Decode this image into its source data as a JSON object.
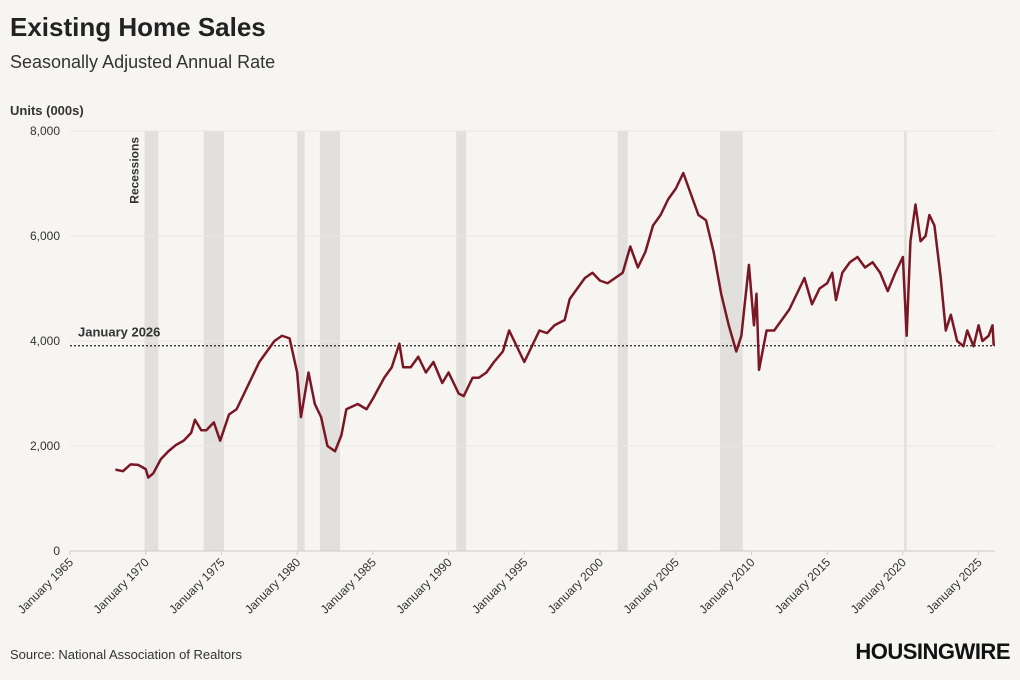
{
  "chart_data": {
    "type": "line",
    "title": "Existing Home Sales",
    "subtitle": "Seasonally Adjusted Annual Rate",
    "y_label": "Units (000s)",
    "source": "Source: National Association of Realtors",
    "brand": "HOUSINGWIRE",
    "recession_label": "Recessions",
    "recessions": [
      [
        "1969-12",
        "1970-11"
      ],
      [
        "1973-11",
        "1975-03"
      ],
      [
        "1980-01",
        "1980-07"
      ],
      [
        "1981-07",
        "1982-11"
      ],
      [
        "1990-07",
        "1991-03"
      ],
      [
        "2001-03",
        "2001-11"
      ],
      [
        "2007-12",
        "2009-06"
      ],
      [
        "2020-02",
        "2020-04"
      ]
    ],
    "reference": {
      "label": "January 2026",
      "value": 3910
    },
    "xlim": [
      "1965-01",
      "2026-02"
    ],
    "xticks": [
      {
        "value": "1965-01",
        "label": "January 1965"
      },
      {
        "value": "1970-01",
        "label": "January 1970"
      },
      {
        "value": "1975-01",
        "label": "January 1975"
      },
      {
        "value": "1980-01",
        "label": "January 1980"
      },
      {
        "value": "1985-01",
        "label": "January 1985"
      },
      {
        "value": "1990-01",
        "label": "January 1990"
      },
      {
        "value": "1995-01",
        "label": "January 1995"
      },
      {
        "value": "2000-01",
        "label": "January 2000"
      },
      {
        "value": "2005-01",
        "label": "January 2005"
      },
      {
        "value": "2010-01",
        "label": "January 2010"
      },
      {
        "value": "2015-01",
        "label": "January 2015"
      },
      {
        "value": "2020-01",
        "label": "January 2020"
      },
      {
        "value": "2025-01",
        "label": "January 2025"
      }
    ],
    "ylim": [
      0,
      8000
    ],
    "yticks": [
      0,
      {
        "value": 2000,
        "label": "2,000"
      },
      {
        "value": 4000,
        "label": "4,000"
      },
      {
        "value": 6000,
        "label": "6,000"
      },
      {
        "value": 8000,
        "label": "8,000"
      }
    ],
    "grid": true,
    "x": [
      "1968-01",
      "1968-07",
      "1969-01",
      "1969-07",
      "1970-01",
      "1970-03",
      "1970-07",
      "1971-01",
      "1971-07",
      "1972-01",
      "1972-07",
      "1973-01",
      "1973-04",
      "1973-09",
      "1974-01",
      "1974-07",
      "1974-12",
      "1975-07",
      "1976-01",
      "1976-07",
      "1977-01",
      "1977-07",
      "1978-01",
      "1978-07",
      "1979-01",
      "1979-07",
      "1980-01",
      "1980-04",
      "1980-10",
      "1981-03",
      "1981-08",
      "1982-01",
      "1982-07",
      "1982-12",
      "1983-04",
      "1984-01",
      "1984-08",
      "1985-01",
      "1985-10",
      "1986-04",
      "1986-10",
      "1987-01",
      "1987-07",
      "1988-01",
      "1988-07",
      "1989-01",
      "1989-08",
      "1990-01",
      "1990-09",
      "1991-01",
      "1991-08",
      "1992-01",
      "1992-07",
      "1993-01",
      "1993-08",
      "1994-01",
      "1994-07",
      "1995-01",
      "1995-07",
      "1996-01",
      "1996-07",
      "1997-01",
      "1997-09",
      "1998-01",
      "1998-07",
      "1999-01",
      "1999-07",
      "2000-01",
      "2000-07",
      "2001-01",
      "2001-07",
      "2002-01",
      "2002-07",
      "2003-01",
      "2003-07",
      "2004-01",
      "2004-07",
      "2005-01",
      "2005-07",
      "2006-01",
      "2006-07",
      "2007-01",
      "2007-07",
      "2008-01",
      "2008-07",
      "2009-01",
      "2009-05",
      "2009-11",
      "2010-03",
      "2010-05",
      "2010-07",
      "2011-01",
      "2011-07",
      "2012-01",
      "2012-07",
      "2013-01",
      "2013-07",
      "2014-01",
      "2014-07",
      "2015-01",
      "2015-05",
      "2015-08",
      "2016-01",
      "2016-07",
      "2017-01",
      "2017-07",
      "2018-01",
      "2018-07",
      "2019-01",
      "2019-07",
      "2020-01",
      "2020-04",
      "2020-07",
      "2020-11",
      "2021-03",
      "2021-07",
      "2021-10",
      "2022-02",
      "2022-07",
      "2022-11",
      "2023-03",
      "2023-08",
      "2024-01",
      "2024-04",
      "2024-09",
      "2025-01",
      "2025-04",
      "2025-09",
      "2025-12",
      "2026-01"
    ],
    "series": [
      {
        "name": "Existing Home Sales",
        "color": "#7a1725",
        "values": [
          1550,
          1520,
          1650,
          1640,
          1560,
          1400,
          1480,
          1750,
          1900,
          2020,
          2100,
          2250,
          2500,
          2300,
          2300,
          2450,
          2100,
          2600,
          2700,
          3000,
          3300,
          3600,
          3800,
          4000,
          4100,
          4050,
          3400,
          2550,
          3400,
          2800,
          2550,
          2000,
          1900,
          2200,
          2700,
          2800,
          2700,
          2900,
          3300,
          3500,
          3950,
          3500,
          3500,
          3700,
          3400,
          3600,
          3200,
          3400,
          3000,
          2950,
          3300,
          3300,
          3400,
          3600,
          3800,
          4200,
          3900,
          3600,
          3900,
          4200,
          4150,
          4300,
          4400,
          4800,
          5000,
          5200,
          5300,
          5150,
          5100,
          5200,
          5300,
          5800,
          5400,
          5700,
          6200,
          6400,
          6700,
          6900,
          7200,
          6800,
          6400,
          6300,
          5700,
          4900,
          4300,
          3800,
          4100,
          5450,
          4300,
          4900,
          3450,
          4200,
          4200,
          4400,
          4600,
          4900,
          5200,
          4700,
          5000,
          5100,
          5300,
          4780,
          5300,
          5500,
          5600,
          5400,
          5500,
          5300,
          4950,
          5300,
          5600,
          4100,
          5900,
          6600,
          5900,
          6000,
          6400,
          6200,
          5200,
          4200,
          4500,
          4000,
          3900,
          4200,
          3900,
          4300,
          4000,
          4100,
          4300,
          3910
        ]
      }
    ]
  }
}
